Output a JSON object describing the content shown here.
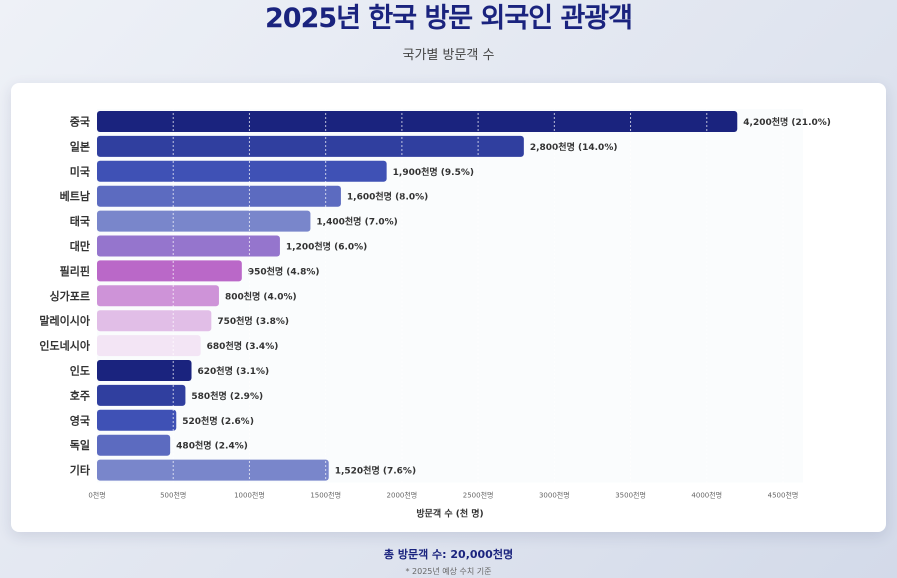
{
  "header": {
    "title": "2025년 한국 방문 외국인 관광객",
    "subtitle": "국가별 방문객 수"
  },
  "footer": {
    "total": "총 방문객 수: 20,000천명",
    "note": "* 2025년 예상 수치 기준"
  },
  "chart_data": {
    "type": "bar",
    "orientation": "horizontal",
    "subtitle": "국가별 방문객 수",
    "xlabel": "방문객 수 (천 명)",
    "ylabel": "",
    "xlim": [
      0,
      4500
    ],
    "grid": true,
    "x_ticks": [
      0,
      500,
      1000,
      1500,
      2000,
      2500,
      3000,
      3500,
      4000,
      4500
    ],
    "x_tick_labels": [
      "0천명",
      "500천명",
      "1000천명",
      "1500천명",
      "2000천명",
      "2500천명",
      "3000천명",
      "3500천명",
      "4000천명",
      "4500천명"
    ],
    "categories": [
      "중국",
      "일본",
      "미국",
      "베트남",
      "태국",
      "대만",
      "필리핀",
      "싱가포르",
      "말레이시아",
      "인도네시아",
      "인도",
      "호주",
      "영국",
      "독일",
      "기타"
    ],
    "values": [
      4200,
      2800,
      1900,
      1600,
      1400,
      1200,
      950,
      800,
      750,
      680,
      620,
      580,
      520,
      480,
      1520
    ],
    "data_labels": [
      "4,200천명 (21.0%)",
      "2,800천명 (14.0%)",
      "1,900천명 (9.5%)",
      "1,600천명 (8.0%)",
      "1,400천명 (7.0%)",
      "1,200천명 (6.0%)",
      "950천명 (4.8%)",
      "800천명 (4.0%)",
      "750천명 (3.8%)",
      "680천명 (3.4%)",
      "620천명 (3.1%)",
      "580천명 (2.9%)",
      "520천명 (2.6%)",
      "480천명 (2.4%)",
      "1,520천명 (7.6%)"
    ],
    "colors": [
      "#1a237e",
      "#303f9f",
      "#3f51b5",
      "#5c6bc0",
      "#7986cb",
      "#9575cd",
      "#ba68c8",
      "#ce93d8",
      "#e1bee7",
      "#f3e5f5",
      "#1a237e",
      "#303f9f",
      "#3f51b5",
      "#5c6bc0",
      "#7986cb"
    ]
  }
}
